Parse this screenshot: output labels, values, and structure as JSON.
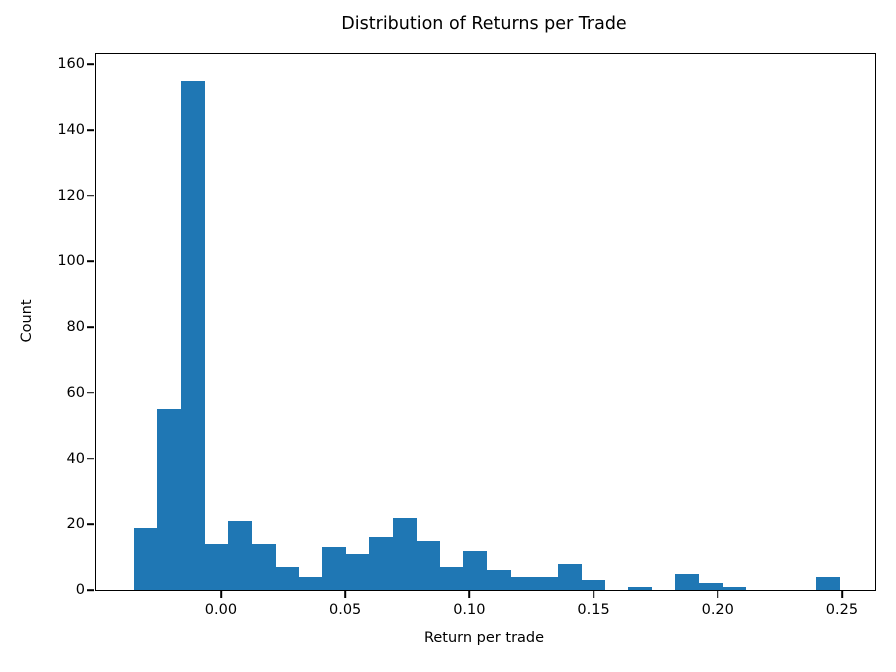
{
  "chart_data": {
    "type": "bar",
    "subtype": "histogram",
    "title": "Distribution of Returns per Trade",
    "xlabel": "Return per trade",
    "ylabel": "Count",
    "bin_start": -0.03502,
    "bin_width": 0.009473,
    "counts": [
      19,
      55,
      155,
      14,
      21,
      14,
      7,
      4,
      13,
      11,
      16,
      22,
      15,
      7,
      12,
      6,
      4,
      4,
      8,
      3,
      0,
      1,
      0,
      5,
      2,
      1,
      0,
      0,
      0,
      4
    ],
    "xlim": [
      -0.0503,
      0.2633
    ],
    "ylim": [
      0,
      163.1
    ],
    "x_ticks": [
      {
        "value": 0.0,
        "label": "0.00"
      },
      {
        "value": 0.05,
        "label": "0.05"
      },
      {
        "value": 0.1,
        "label": "0.10"
      },
      {
        "value": 0.15,
        "label": "0.15"
      },
      {
        "value": 0.2,
        "label": "0.20"
      },
      {
        "value": 0.25,
        "label": "0.25"
      }
    ],
    "y_ticks": [
      {
        "value": 0,
        "label": "0"
      },
      {
        "value": 20,
        "label": "20"
      },
      {
        "value": 40,
        "label": "40"
      },
      {
        "value": 60,
        "label": "60"
      },
      {
        "value": 80,
        "label": "80"
      },
      {
        "value": 100,
        "label": "100"
      },
      {
        "value": 120,
        "label": "120"
      },
      {
        "value": 140,
        "label": "140"
      },
      {
        "value": 160,
        "label": "160"
      }
    ],
    "bar_color": "#1f77b4",
    "axis_color": "#000000",
    "background_color": "#ffffff",
    "grid": false,
    "legend": null
  }
}
